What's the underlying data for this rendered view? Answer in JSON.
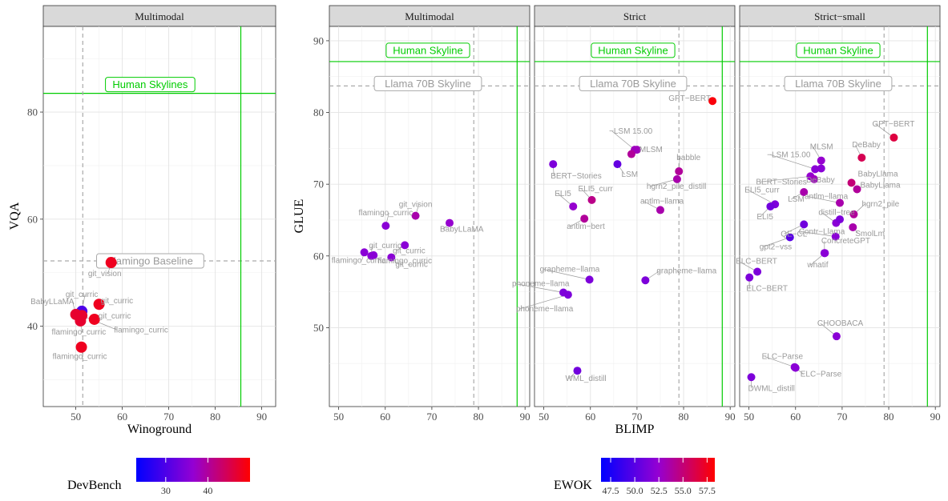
{
  "chart_data": [
    {
      "type": "scatter",
      "panel": "Multimodal",
      "xlabel": "Winoground",
      "ylabel": "VQA",
      "xlim": [
        43,
        93
      ],
      "ylim": [
        25,
        96
      ],
      "xticks": [
        50,
        60,
        70,
        80,
        90
      ],
      "yticks": [
        40,
        60,
        80
      ],
      "color_by": "DevBench",
      "hlines": [
        {
          "y": 83.5,
          "color": "#00cc00",
          "style": "solid",
          "label": "Human Skylines"
        },
        {
          "y": 52.2,
          "color": "#aaaaaa",
          "style": "dashed",
          "label": "Flamingo Baseline"
        }
      ],
      "vlines": [
        {
          "x": 85.5,
          "color": "#00cc00",
          "style": "solid"
        },
        {
          "x": 51.5,
          "color": "#aaaaaa",
          "style": "dashed"
        }
      ],
      "points": [
        {
          "label": "git_vision",
          "x": 57.6,
          "y": 51.9,
          "c": 48
        },
        {
          "label": "git_curric",
          "x": 51.3,
          "y": 42.8,
          "c": 30
        },
        {
          "label": "BabyLLaMA",
          "x": 50.0,
          "y": 42.2,
          "c": 47
        },
        {
          "label": "git_curric",
          "x": 55.0,
          "y": 44.1,
          "c": 48
        },
        {
          "label": "git_curric",
          "x": 54.0,
          "y": 41.3,
          "c": 48
        },
        {
          "label": "flamingo_curric",
          "x": 51.0,
          "y": 41.0,
          "c": 47
        },
        {
          "label": "flamingo_curric",
          "x": 51.3,
          "y": 42.0,
          "c": 47
        },
        {
          "label": "flamingo_curric",
          "x": 51.2,
          "y": 36.1,
          "c": 48
        }
      ]
    },
    {
      "type": "scatter",
      "panel": "Multimodal",
      "xlabel": "BLIMP",
      "ylabel": "GLUE",
      "xlim": [
        48,
        91
      ],
      "ylim": [
        39,
        92
      ],
      "xticks": [
        50,
        60,
        70,
        80,
        90
      ],
      "yticks": [
        50,
        60,
        70,
        80,
        90
      ],
      "color_by": "EWOK",
      "hlines": [
        {
          "y": 87.1,
          "color": "#00cc00",
          "style": "solid",
          "label": "Human Skyline"
        },
        {
          "y": 83.7,
          "color": "#aaaaaa",
          "style": "dashed",
          "label": "Llama 70B Skyline"
        }
      ],
      "vlines": [
        {
          "x": 88.3,
          "color": "#00cc00",
          "style": "solid"
        },
        {
          "x": 79.0,
          "color": "#aaaaaa",
          "style": "dashed"
        }
      ],
      "points": [
        {
          "label": "git_vision",
          "x": 66.5,
          "y": 65.6,
          "c": 53.5
        },
        {
          "label": "flamingo_curric",
          "x": 60.1,
          "y": 64.2,
          "c": 52.0
        },
        {
          "label": "BabyLLaMA",
          "x": 73.8,
          "y": 64.6,
          "c": 52.5
        },
        {
          "label": "git_curric",
          "x": 64.2,
          "y": 61.5,
          "c": 52.0
        },
        {
          "label": "flamingo_curric",
          "x": 55.5,
          "y": 60.5,
          "c": 52.0
        },
        {
          "label": "git_curric",
          "x": 57.0,
          "y": 60.0,
          "c": 52.0
        },
        {
          "label": "flamingo_curric",
          "x": 57.5,
          "y": 60.1,
          "c": 52.0
        },
        {
          "label": "git_curric",
          "x": 61.3,
          "y": 59.8,
          "c": 52.0
        }
      ]
    },
    {
      "type": "scatter",
      "panel": "Strict",
      "xlabel": "BLIMP",
      "ylabel": "GLUE",
      "xlim": [
        48,
        91
      ],
      "ylim": [
        39,
        92
      ],
      "xticks": [
        50,
        60,
        70,
        80,
        90
      ],
      "yticks": [
        50,
        60,
        70,
        80,
        90
      ],
      "color_by": "EWOK",
      "hlines": [
        {
          "y": 87.1,
          "color": "#00cc00",
          "style": "solid",
          "label": "Human Skyline"
        },
        {
          "y": 83.7,
          "color": "#aaaaaa",
          "style": "dashed",
          "label": "Llama 70B Skyline"
        }
      ],
      "vlines": [
        {
          "x": 88.3,
          "color": "#00cc00",
          "style": "solid"
        },
        {
          "x": 79.0,
          "color": "#aaaaaa",
          "style": "dashed"
        }
      ],
      "points": [
        {
          "label": "GPT−BERT",
          "x": 86.2,
          "y": 81.6,
          "c": 58.0
        },
        {
          "label": "−LSM 15.00",
          "x": 69.5,
          "y": 74.8,
          "c": 53.0
        },
        {
          "label": "MLSM",
          "x": 70.0,
          "y": 74.8,
          "c": 53.0
        },
        {
          "label": "LSM",
          "x": 65.8,
          "y": 72.8,
          "c": 50.5
        },
        {
          "label": "",
          "x": 68.8,
          "y": 74.2,
          "c": 54.0
        },
        {
          "label": "BERT−Stories",
          "x": 52.0,
          "y": 72.8,
          "c": 51.5
        },
        {
          "label": "babble",
          "x": 79.0,
          "y": 71.8,
          "c": 54.0
        },
        {
          "label": "hgrn2_pile_distill",
          "x": 78.6,
          "y": 70.7,
          "c": 53.5
        },
        {
          "label": "ELI5",
          "x": 56.3,
          "y": 66.9,
          "c": 52.5
        },
        {
          "label": "ELI5_curr",
          "x": 60.3,
          "y": 67.8,
          "c": 54.5
        },
        {
          "label": "antlm−llama",
          "x": 75.0,
          "y": 66.4,
          "c": 53.5
        },
        {
          "label": "antlm−bert",
          "x": 58.7,
          "y": 65.2,
          "c": 54.0
        },
        {
          "label": "grapheme−llama",
          "x": 59.8,
          "y": 56.7,
          "c": 51.5
        },
        {
          "label": "grapheme−llama",
          "x": 71.8,
          "y": 56.6,
          "c": 51.5
        },
        {
          "label": "phoneme−llama",
          "x": 54.2,
          "y": 54.9,
          "c": 51.5
        },
        {
          "label": "phoneme−llama",
          "x": 55.2,
          "y": 54.6,
          "c": 51.5
        },
        {
          "label": "WML_distill",
          "x": 57.2,
          "y": 44.0,
          "c": 51.0
        }
      ]
    },
    {
      "type": "scatter",
      "panel": "Strict−small",
      "xlabel": "BLIMP",
      "ylabel": "GLUE",
      "xlim": [
        48,
        91
      ],
      "ylim": [
        39,
        92
      ],
      "xticks": [
        50,
        60,
        70,
        80,
        90
      ],
      "yticks": [
        50,
        60,
        70,
        80,
        90
      ],
      "color_by": "EWOK",
      "hlines": [
        {
          "y": 87.1,
          "color": "#00cc00",
          "style": "solid",
          "label": "Human Skyline"
        },
        {
          "y": 83.7,
          "color": "#aaaaaa",
          "style": "dashed",
          "label": "Llama 70B Skyline"
        }
      ],
      "vlines": [
        {
          "x": 88.3,
          "color": "#00cc00",
          "style": "solid"
        },
        {
          "x": 79.0,
          "color": "#aaaaaa",
          "style": "dashed"
        }
      ],
      "points": [
        {
          "label": "GPT−BERT",
          "x": 81.1,
          "y": 76.5,
          "c": 56.5
        },
        {
          "label": "DeBaby",
          "x": 74.2,
          "y": 73.7,
          "c": 56.0
        },
        {
          "label": "MLSM",
          "x": 65.5,
          "y": 73.3,
          "c": 52.5
        },
        {
          "label": "−LSM 15.00",
          "x": 64.2,
          "y": 72.1,
          "c": 52.0
        },
        {
          "label": "",
          "x": 65.5,
          "y": 72.2,
          "c": 52.0
        },
        {
          "label": "BabyLlama",
          "x": 72.0,
          "y": 70.2,
          "c": 55.0
        },
        {
          "label": "BERT−Stories",
          "x": 63.2,
          "y": 71.1,
          "c": 52.5
        },
        {
          "label": "DeBaby",
          "x": 64.0,
          "y": 70.7,
          "c": 53.0
        },
        {
          "label": "BabyLlama",
          "x": 73.2,
          "y": 69.3,
          "c": 54.0
        },
        {
          "label": "antlm−llama",
          "x": 69.5,
          "y": 67.4,
          "c": 53.5
        },
        {
          "label": "ELI5_curr",
          "x": 55.6,
          "y": 67.2,
          "c": 51.5
        },
        {
          "label": "ELI5",
          "x": 54.6,
          "y": 66.9,
          "c": 51.0
        },
        {
          "label": "LSM",
          "x": 61.8,
          "y": 68.9,
          "c": 53.5
        },
        {
          "label": "hgrn2_pile",
          "x": 72.5,
          "y": 65.8,
          "c": 54.0
        },
        {
          "label": "QE−CL",
          "x": 61.8,
          "y": 64.4,
          "c": 51.0
        },
        {
          "label": "distill−tree",
          "x": 68.7,
          "y": 64.6,
          "c": 52.0
        },
        {
          "label": "",
          "x": 69.5,
          "y": 65.1,
          "c": 51.5
        },
        {
          "label": "SmolLm",
          "x": 72.3,
          "y": 64.0,
          "c": 53.5
        },
        {
          "label": "Contr−Llama",
          "x": 68.6,
          "y": 62.7,
          "c": 52.0
        },
        {
          "label": "gpt2−vss",
          "x": 58.8,
          "y": 62.6,
          "c": 50.0
        },
        {
          "label": "ConcreteGPT",
          "x": 66.2,
          "y": 60.4,
          "c": 52.0
        },
        {
          "label": "whatif",
          "x": 66.3,
          "y": 60.4,
          "c": 52.0
        },
        {
          "label": "ELC−BERT",
          "x": 51.8,
          "y": 57.8,
          "c": 51.5
        },
        {
          "label": "ELC−BERT",
          "x": 50.1,
          "y": 57.0,
          "c": 51.5
        },
        {
          "label": "CHOOBACA",
          "x": 68.8,
          "y": 48.8,
          "c": 52.0
        },
        {
          "label": "ELC−Parse",
          "x": 59.8,
          "y": 44.5,
          "c": 52.0
        },
        {
          "label": "ELC−Parse",
          "x": 60.0,
          "y": 44.4,
          "c": 52.0
        },
        {
          "label": "DWML_distill",
          "x": 50.5,
          "y": 43.1,
          "c": 51.5
        }
      ]
    }
  ],
  "legends": {
    "devbench": {
      "title": "DevBench",
      "ticks": [
        30,
        40
      ],
      "range": [
        23,
        50
      ]
    },
    "ewok": {
      "title": "EWOK",
      "ticks": [
        47.5,
        50.0,
        52.5,
        55.0,
        57.5
      ],
      "tick_labels": [
        "47.5",
        "50.0",
        "52.5",
        "55.0",
        "57.5"
      ],
      "range": [
        46.5,
        58.3
      ]
    }
  },
  "colors": {
    "low": "#0000ff",
    "mid": "#9400d3",
    "high": "#ff0000",
    "skyline": "#00cc00",
    "baseline": "#aaaaaa"
  }
}
